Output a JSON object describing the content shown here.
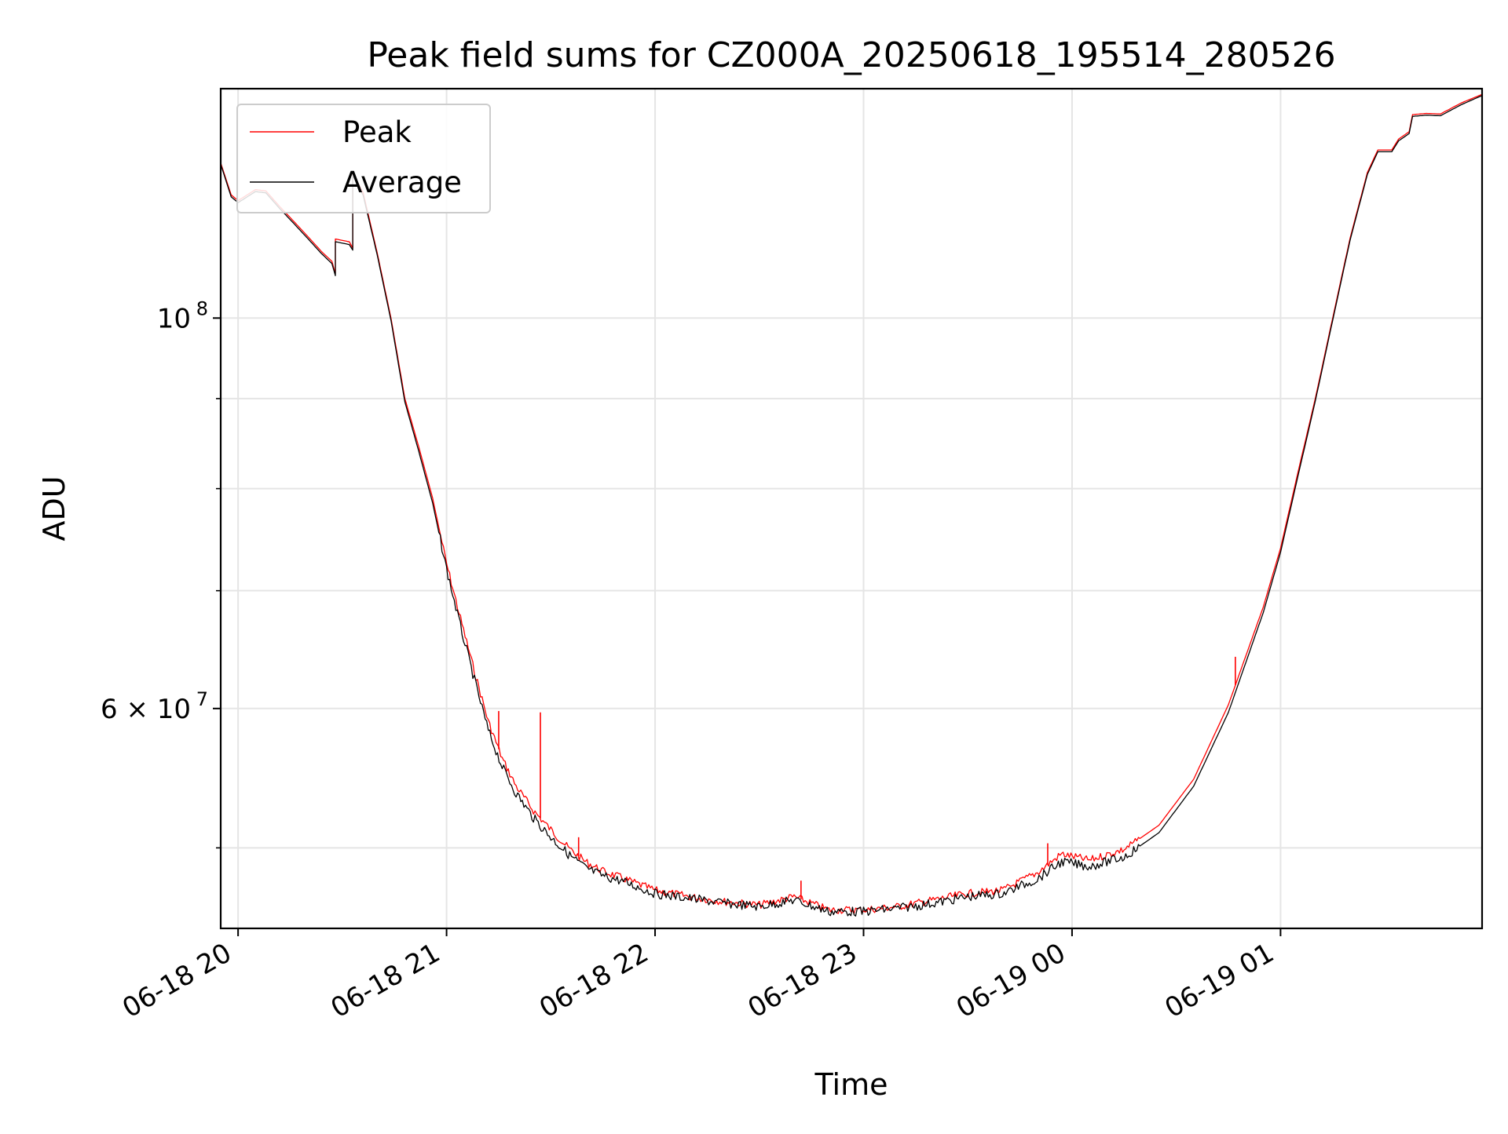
{
  "chart_data": {
    "type": "line",
    "title": "Peak field sums for CZ000A_20250618_195514_280526",
    "xlabel": "Time",
    "ylabel": "ADU",
    "yscale": "log",
    "xlim": [
      "2025-06-18 19:55",
      "2025-06-19 01:58"
    ],
    "ylim": [
      45000000,
      135000000
    ],
    "grid": true,
    "legend_position": "top-left",
    "x_ticks": [
      {
        "t": "2025-06-18 20:00",
        "label": "06-18 20"
      },
      {
        "t": "2025-06-18 21:00",
        "label": "06-18 21"
      },
      {
        "t": "2025-06-18 22:00",
        "label": "06-18 22"
      },
      {
        "t": "2025-06-18 23:00",
        "label": "06-18 23"
      },
      {
        "t": "2025-06-19 00:00",
        "label": "06-19 00"
      },
      {
        "t": "2025-06-19 01:00",
        "label": "06-19 01"
      }
    ],
    "y_major_ticks": [
      {
        "v": 60000000,
        "label": "6 × 10",
        "exp": "7"
      },
      {
        "v": 100000000,
        "label": "10",
        "exp": "8"
      }
    ],
    "y_minor_ticks": [
      50000000,
      70000000,
      80000000,
      90000000
    ],
    "series": [
      {
        "name": "Peak",
        "color": "#ff0000",
        "points": [
          [
            "2025-06-18 19:55",
            122500000
          ],
          [
            "2025-06-18 19:58",
            117500000
          ],
          [
            "2025-06-18 20:00",
            116600000
          ],
          [
            "2025-06-18 20:05",
            118300000
          ],
          [
            "2025-06-18 20:08",
            118100000
          ],
          [
            "2025-06-18 20:12",
            115700000
          ],
          [
            "2025-06-18 20:16",
            113500000
          ],
          [
            "2025-06-18 20:20",
            111300000
          ],
          [
            "2025-06-18 20:24",
            109100000
          ],
          [
            "2025-06-18 20:27",
            107700000
          ],
          [
            "2025-06-18 20:28",
            106000000
          ],
          [
            "2025-06-18 20:28",
            110900000
          ],
          [
            "2025-06-18 20:32",
            110500000
          ],
          [
            "2025-06-18 20:33",
            109600000
          ],
          [
            "2025-06-18 20:33",
            121000000
          ],
          [
            "2025-06-18 20:36",
            117800000
          ],
          [
            "2025-06-18 20:40",
            109000000
          ],
          [
            "2025-06-18 20:44",
            100000000
          ],
          [
            "2025-06-18 20:48",
            90000000
          ],
          [
            "2025-06-18 20:52",
            84500000
          ],
          [
            "2025-06-18 20:56",
            79000000
          ],
          [
            "2025-06-18 21:00",
            72500000
          ],
          [
            "2025-06-18 21:04",
            67500000
          ],
          [
            "2025-06-18 21:08",
            63000000
          ],
          [
            "2025-06-18 21:12",
            59000000
          ],
          [
            "2025-06-18 21:16",
            56200000
          ],
          [
            "2025-06-18 21:20",
            54200000
          ],
          [
            "2025-06-18 21:25",
            52500000
          ],
          [
            "2025-06-18 21:30",
            51200000
          ],
          [
            "2025-06-18 21:35",
            50000000
          ],
          [
            "2025-06-18 21:40",
            49100000
          ],
          [
            "2025-06-18 21:45",
            48500000
          ],
          [
            "2025-06-18 21:50",
            48100000
          ],
          [
            "2025-06-18 22:00",
            47300000
          ],
          [
            "2025-06-18 22:10",
            46900000
          ],
          [
            "2025-06-18 22:20",
            46600000
          ],
          [
            "2025-06-18 22:30",
            46400000
          ],
          [
            "2025-06-18 22:40",
            46900000
          ],
          [
            "2025-06-18 22:50",
            46100000
          ],
          [
            "2025-06-18 23:00",
            46100000
          ],
          [
            "2025-06-18 23:10",
            46300000
          ],
          [
            "2025-06-18 23:20",
            46700000
          ],
          [
            "2025-06-18 23:30",
            47100000
          ],
          [
            "2025-06-18 23:40",
            47300000
          ],
          [
            "2025-06-18 23:50",
            48400000
          ],
          [
            "2025-06-18 23:57",
            49600000
          ],
          [
            "2025-06-19 00:05",
            49200000
          ],
          [
            "2025-06-19 00:15",
            49900000
          ],
          [
            "2025-06-19 00:25",
            51500000
          ],
          [
            "2025-06-19 00:35",
            54700000
          ],
          [
            "2025-06-19 00:45",
            60300000
          ],
          [
            "2025-06-19 00:55",
            68500000
          ],
          [
            "2025-06-19 01:00",
            74000000
          ],
          [
            "2025-06-19 01:05",
            81700000
          ],
          [
            "2025-06-19 01:10",
            90000000
          ],
          [
            "2025-06-19 01:15",
            100000000
          ],
          [
            "2025-06-19 01:20",
            111000000
          ],
          [
            "2025-06-19 01:25",
            121000000
          ],
          [
            "2025-06-19 01:28",
            124600000
          ],
          [
            "2025-06-19 01:32",
            124600000
          ],
          [
            "2025-06-19 01:34",
            126400000
          ],
          [
            "2025-06-19 01:37",
            127600000
          ],
          [
            "2025-06-19 01:38",
            130500000
          ],
          [
            "2025-06-19 01:42",
            130700000
          ],
          [
            "2025-06-19 01:46",
            130600000
          ],
          [
            "2025-06-19 01:52",
            132500000
          ],
          [
            "2025-06-19 01:58",
            134000000
          ]
        ],
        "spikes": [
          [
            "2025-06-18 21:15",
            59800000
          ],
          [
            "2025-06-18 21:27",
            59700000
          ],
          [
            "2025-06-18 21:38",
            50700000
          ],
          [
            "2025-06-18 22:42",
            47900000
          ],
          [
            "2025-06-18 23:53",
            50300000
          ],
          [
            "2025-06-19 00:47",
            64200000
          ]
        ]
      },
      {
        "name": "Average",
        "color": "#000000",
        "points": [
          [
            "2025-06-18 19:55",
            122300000
          ],
          [
            "2025-06-18 19:58",
            117200000
          ],
          [
            "2025-06-18 20:00",
            116300000
          ],
          [
            "2025-06-18 20:05",
            118000000
          ],
          [
            "2025-06-18 20:08",
            117800000
          ],
          [
            "2025-06-18 20:12",
            115400000
          ],
          [
            "2025-06-18 20:16",
            113200000
          ],
          [
            "2025-06-18 20:20",
            111000000
          ],
          [
            "2025-06-18 20:24",
            108800000
          ],
          [
            "2025-06-18 20:27",
            107400000
          ],
          [
            "2025-06-18 20:28",
            105700000
          ],
          [
            "2025-06-18 20:28",
            110500000
          ],
          [
            "2025-06-18 20:32",
            110100000
          ],
          [
            "2025-06-18 20:33",
            109300000
          ],
          [
            "2025-06-18 20:33",
            120500000
          ],
          [
            "2025-06-18 20:36",
            117400000
          ],
          [
            "2025-06-18 20:40",
            108700000
          ],
          [
            "2025-06-18 20:44",
            99700000
          ],
          [
            "2025-06-18 20:48",
            89600000
          ],
          [
            "2025-06-18 20:52",
            84000000
          ],
          [
            "2025-06-18 20:56",
            78500000
          ],
          [
            "2025-06-18 21:00",
            72000000
          ],
          [
            "2025-06-18 21:04",
            66800000
          ],
          [
            "2025-06-18 21:08",
            62300000
          ],
          [
            "2025-06-18 21:12",
            58300000
          ],
          [
            "2025-06-18 21:16",
            55600000
          ],
          [
            "2025-06-18 21:20",
            53700000
          ],
          [
            "2025-06-18 21:25",
            52000000
          ],
          [
            "2025-06-18 21:30",
            50700000
          ],
          [
            "2025-06-18 21:35",
            49600000
          ],
          [
            "2025-06-18 21:40",
            48700000
          ],
          [
            "2025-06-18 21:45",
            48200000
          ],
          [
            "2025-06-18 21:50",
            47900000
          ],
          [
            "2025-06-18 22:00",
            47100000
          ],
          [
            "2025-06-18 22:10",
            46800000
          ],
          [
            "2025-06-18 22:20",
            46500000
          ],
          [
            "2025-06-18 22:30",
            46300000
          ],
          [
            "2025-06-18 22:40",
            46700000
          ],
          [
            "2025-06-18 22:50",
            46000000
          ],
          [
            "2025-06-18 23:00",
            46000000
          ],
          [
            "2025-06-18 23:10",
            46200000
          ],
          [
            "2025-06-18 23:20",
            46500000
          ],
          [
            "2025-06-18 23:30",
            46900000
          ],
          [
            "2025-06-18 23:40",
            47100000
          ],
          [
            "2025-06-18 23:50",
            48000000
          ],
          [
            "2025-06-18 23:57",
            49100000
          ],
          [
            "2025-06-19 00:05",
            48800000
          ],
          [
            "2025-06-19 00:15",
            49400000
          ],
          [
            "2025-06-19 00:25",
            51000000
          ],
          [
            "2025-06-19 00:35",
            54200000
          ],
          [
            "2025-06-19 00:45",
            59700000
          ],
          [
            "2025-06-19 00:55",
            68000000
          ],
          [
            "2025-06-19 01:00",
            73600000
          ],
          [
            "2025-06-19 01:05",
            81300000
          ],
          [
            "2025-06-19 01:10",
            89700000
          ],
          [
            "2025-06-19 01:15",
            99700000
          ],
          [
            "2025-06-19 01:20",
            110700000
          ],
          [
            "2025-06-19 01:25",
            120700000
          ],
          [
            "2025-06-19 01:28",
            124300000
          ],
          [
            "2025-06-19 01:32",
            124300000
          ],
          [
            "2025-06-19 01:34",
            126100000
          ],
          [
            "2025-06-19 01:37",
            127300000
          ],
          [
            "2025-06-19 01:38",
            130200000
          ],
          [
            "2025-06-19 01:42",
            130400000
          ],
          [
            "2025-06-19 01:46",
            130300000
          ],
          [
            "2025-06-19 01:52",
            132200000
          ],
          [
            "2025-06-19 01:58",
            133800000
          ]
        ]
      }
    ]
  }
}
